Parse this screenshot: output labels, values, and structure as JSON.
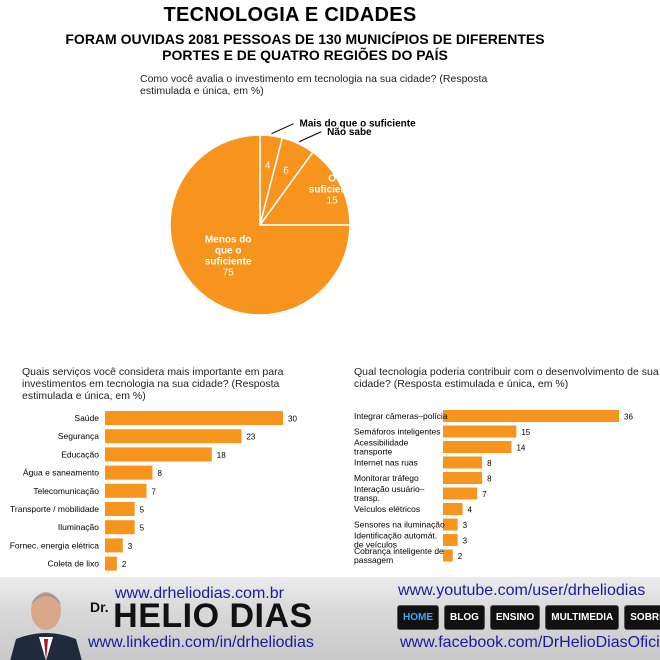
{
  "header": {
    "title": "TECNOLOGIA E CIDADES",
    "subtitle": "FORAM OUVIDAS 2081 PESSOAS DE 130 MUNICÍPIOS DE DIFERENTES PORTES E DE QUATRO REGIÕES DO PAÍS"
  },
  "colors": {
    "bar": "#f7941d",
    "pie": "#f7941d",
    "pie_border": "#ffffff"
  },
  "chart_data": [
    {
      "type": "pie",
      "title": "Como você avalia o investimento em tecnologia na sua cidade? (Resposta estimulada e única, em %)",
      "slices": [
        {
          "label": "Mais do que o suficiente",
          "value": 4,
          "label_position": "outside"
        },
        {
          "label": "Não sabe",
          "value": 6,
          "label_position": "outside"
        },
        {
          "label": "O suficiente",
          "value": 15,
          "label_position": "inside"
        },
        {
          "label": "Menos do que o suficiente",
          "value": 75,
          "label_position": "inside"
        }
      ]
    },
    {
      "type": "bar",
      "orientation": "horizontal",
      "title": "Quais serviços você considera mais importante em para investimentos em tecnologia na sua cidade? (Resposta estimulada e única, em %)",
      "categories": [
        "Saúde",
        "Segurança",
        "Educação",
        "Água e saneamento",
        "Telecomunicação",
        "Transporte / mobilidade",
        "Iluminação",
        "Fornec. energia elétrica",
        "Coleta de lixo"
      ],
      "values": [
        30,
        23,
        18,
        8,
        7,
        5,
        5,
        3,
        2
      ],
      "xlim": [
        0,
        30
      ]
    },
    {
      "type": "bar",
      "orientation": "horizontal",
      "title": "Qual tecnologia poderia contribuir com o desenvolvimento de sua cidade? (Resposta estimulada e única, em %)",
      "categories": [
        "Integrar câmeras–polícia",
        "Semáforos inteligentes",
        "Acessibilidade transporte",
        "Internet nas ruas",
        "Monitorar tráfego",
        "Interação usuário–transp.",
        "Veículos elétricos",
        "Sensores na iluminação",
        "Identificação automát. de veículos",
        "Cobrança inteligente de passagem"
      ],
      "values": [
        36,
        15,
        14,
        8,
        8,
        7,
        4,
        3,
        3,
        2
      ],
      "xlim": [
        0,
        36
      ]
    }
  ],
  "footer": {
    "site_url": "www.drheliodias.com.br",
    "linkedin_url": "www.linkedin.com/in/drheliodias",
    "youtube_url": "www.youtube.com/user/drheliodias",
    "facebook_url": "www.facebook.com/DrHelioDiasOficial",
    "brand_prefix": "Dr.",
    "brand_name": "HELIO DIAS",
    "nav": [
      "HOME",
      "BLOG",
      "ENSINO",
      "MULTIMEDIA",
      "SOBRE"
    ]
  }
}
